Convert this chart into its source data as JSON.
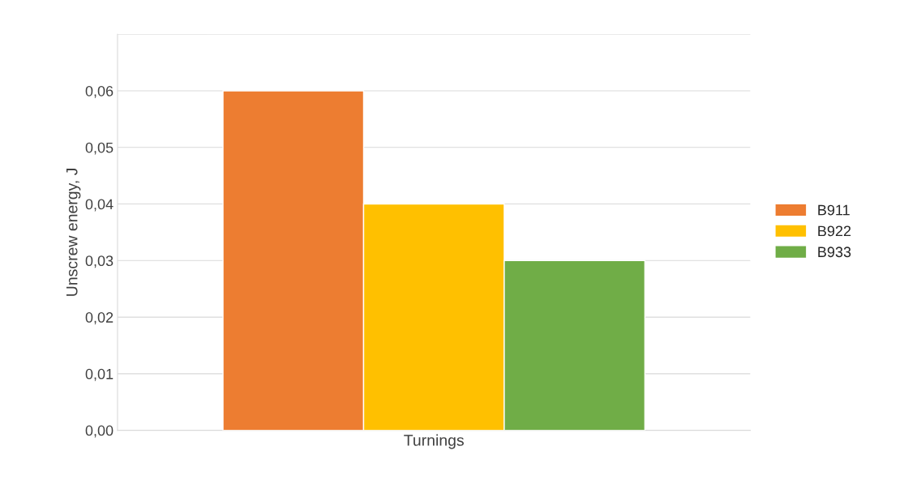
{
  "chart_data": {
    "type": "bar",
    "ylabel": "Unscrew energy, J",
    "categories": [
      "Turnings"
    ],
    "series": [
      {
        "name": "B911",
        "color": "#ed7d31",
        "values": [
          0.06
        ]
      },
      {
        "name": "B922",
        "color": "#ffc000",
        "values": [
          0.04
        ]
      },
      {
        "name": "B933",
        "color": "#70ad47",
        "values": [
          0.03
        ]
      }
    ],
    "ylim": [
      0,
      0.07
    ],
    "yticks": [
      {
        "value": 0,
        "label": "0,00"
      },
      {
        "value": 0.01,
        "label": "0,01"
      },
      {
        "value": 0.02,
        "label": "0,02"
      },
      {
        "value": 0.03,
        "label": "0,03"
      },
      {
        "value": 0.04,
        "label": "0,04"
      },
      {
        "value": 0.05,
        "label": "0,05"
      },
      {
        "value": 0.06,
        "label": "0,06"
      },
      {
        "value": 0.07,
        "label": null
      }
    ],
    "grid": "y",
    "legend": "right"
  }
}
